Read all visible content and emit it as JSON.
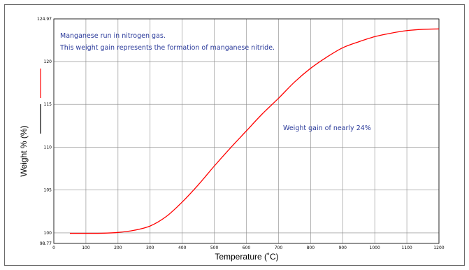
{
  "chart_data": {
    "type": "line",
    "title": "",
    "xlabel": "Temperature (˚C)",
    "ylabel": "Weight % (%)",
    "xlim": [
      0,
      1200
    ],
    "ylim": [
      98.77,
      124.97
    ],
    "x_ticks": [
      0,
      100,
      200,
      300,
      400,
      500,
      600,
      700,
      800,
      900,
      1000,
      1100,
      1200
    ],
    "x_tick_labels": [
      "0",
      "100",
      "200",
      "300",
      "400",
      "500",
      "600",
      "700",
      "800",
      "900",
      "1000",
      "1100",
      "1200"
    ],
    "y_ticks": [
      98.77,
      100,
      105,
      110,
      115,
      120,
      124.97
    ],
    "y_tick_labels": [
      "98.77",
      "100",
      "105",
      "110",
      "115",
      "120",
      "124.97"
    ],
    "grid": true,
    "annotations": [
      "Manganese run in nitrogen gas.",
      "This weight gain represents the formation of manganese nitride.",
      "Weight gain of nearly 24%"
    ],
    "series": [
      {
        "color": "#ff0000",
        "x": [
          50,
          100,
          150,
          200,
          250,
          300,
          350,
          400,
          450,
          500,
          550,
          600,
          650,
          700,
          750,
          800,
          850,
          900,
          950,
          1000,
          1050,
          1100,
          1150,
          1200
        ],
        "y": [
          99.95,
          99.95,
          99.96,
          100.05,
          100.3,
          100.8,
          101.9,
          103.6,
          105.6,
          107.8,
          109.9,
          111.9,
          113.9,
          115.7,
          117.6,
          119.2,
          120.5,
          121.6,
          122.3,
          122.9,
          123.3,
          123.6,
          123.75,
          123.8
        ]
      }
    ]
  },
  "colors": {
    "line": "#ff0000",
    "annotation_text": "#2a3a9a",
    "grid": "#888888",
    "legend_black": "#000000"
  }
}
